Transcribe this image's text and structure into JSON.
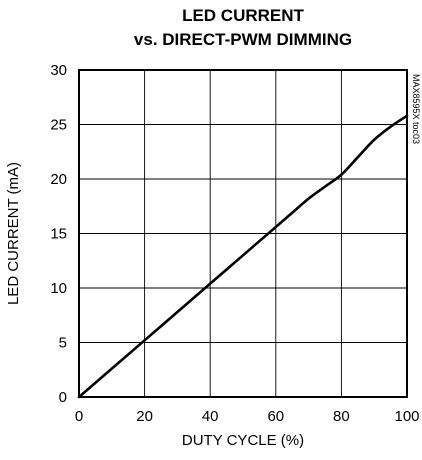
{
  "chart_data": {
    "type": "line",
    "title": "LED CURRENT",
    "subtitle": "vs. DIRECT-PWM DIMMING",
    "xlabel": "DUTY CYCLE (%)",
    "ylabel": "LED CURRENT (mA)",
    "xlim": [
      0,
      100
    ],
    "ylim": [
      0,
      30
    ],
    "xticks": [
      0,
      20,
      40,
      60,
      80,
      100
    ],
    "yticks": [
      0,
      5,
      10,
      15,
      20,
      25,
      30
    ],
    "grid": true,
    "legend": "none",
    "side_label": "MAX8595X toc03",
    "line_color": "#000000",
    "series": [
      {
        "x": [
          0,
          10,
          20,
          30,
          40,
          50,
          60,
          65,
          70,
          75,
          80,
          85,
          90,
          95,
          100
        ],
        "values": [
          0,
          2.6,
          5.2,
          7.8,
          10.4,
          13.0,
          15.6,
          16.9,
          18.2,
          19.3,
          20.4,
          22.0,
          23.6,
          24.8,
          25.8
        ]
      }
    ]
  }
}
